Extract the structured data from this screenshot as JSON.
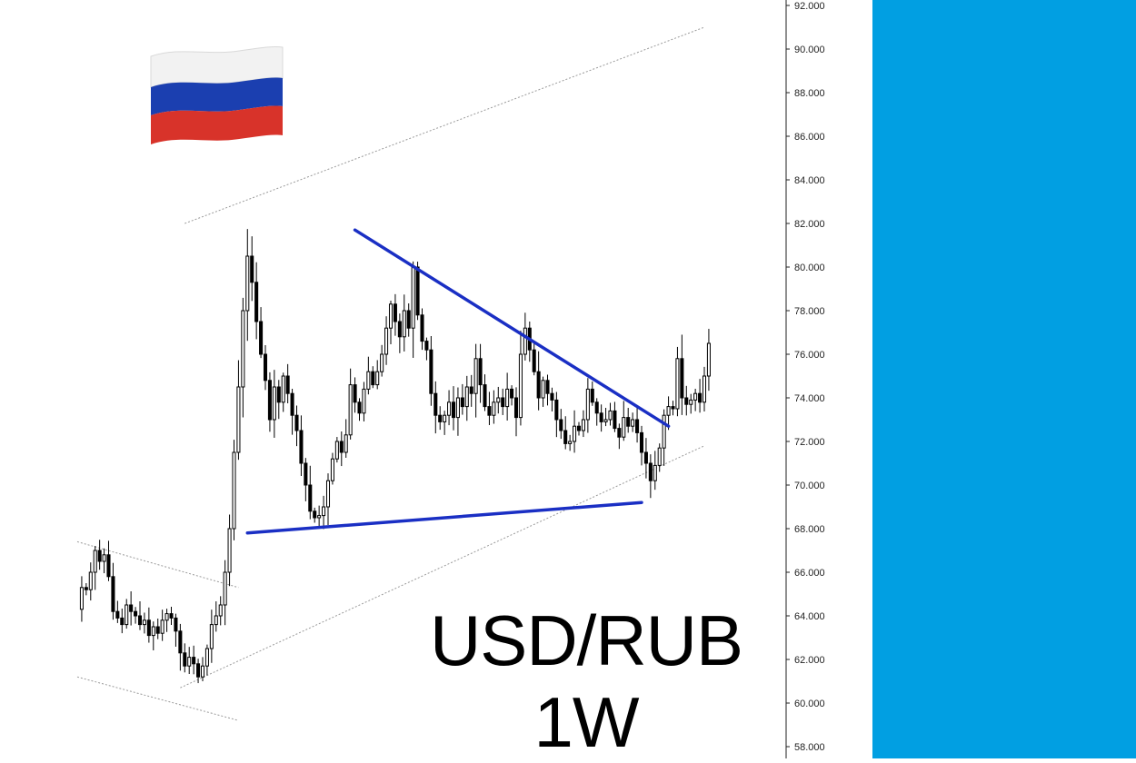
{
  "overlay": {
    "pair": "USD/RUB",
    "timeframe": "1W",
    "flag_icon": "russia-flag-icon"
  },
  "colors": {
    "background": "#ffffff",
    "candle_up": "#ffffff",
    "candle_down": "#000000",
    "wick": "#000000",
    "trendline": "#1a2fc4",
    "channel": "#9a9a9a",
    "side_panel": "#019fe2",
    "flag_white": "#f2f2f2",
    "flag_blue": "#1b3fb0",
    "flag_red": "#d8332a"
  },
  "chart_data": {
    "type": "candlestick",
    "title": "USD/RUB",
    "timeframe": "1W",
    "ylim": [
      58,
      92
    ],
    "y_ticks": [
      "92.000",
      "90.000",
      "88.000",
      "86.000",
      "84.000",
      "82.000",
      "80.000",
      "78.000",
      "76.000",
      "74.000",
      "72.000",
      "70.000",
      "68.000",
      "66.000",
      "64.000",
      "62.000",
      "60.000",
      "58.000"
    ],
    "x_index_range": [
      0,
      140
    ],
    "close": [
      64.3,
      65.3,
      65.2,
      66.0,
      67.0,
      66.5,
      66.8,
      65.8,
      64.2,
      63.9,
      63.6,
      64.5,
      64.2,
      64.0,
      63.6,
      63.8,
      63.1,
      63.5,
      63.2,
      63.8,
      64.1,
      63.9,
      63.3,
      62.3,
      61.7,
      62.1,
      61.8,
      61.2,
      61.7,
      62.5,
      63.6,
      64.0,
      64.5,
      66.0,
      68.0,
      71.5,
      74.5,
      78.0,
      80.5,
      79.3,
      77.5,
      76.0,
      74.8,
      73.0,
      74.5,
      73.8,
      75.0,
      74.2,
      73.2,
      72.5,
      71.0,
      70.0,
      68.8,
      68.5,
      68.6,
      69.0,
      70.2,
      71.2,
      72.0,
      71.5,
      72.3,
      74.6,
      73.8,
      73.3,
      74.4,
      75.2,
      74.6,
      75.2,
      76.0,
      77.2,
      78.3,
      77.5,
      76.8,
      78.0,
      77.2,
      80.0,
      77.8,
      76.6,
      76.2,
      74.2,
      73.2,
      72.9,
      73.2,
      73.8,
      73.1,
      74.0,
      73.6,
      74.5,
      74.2,
      75.8,
      74.6,
      73.6,
      73.2,
      73.8,
      74.0,
      73.6,
      74.4,
      74.0,
      73.1,
      76.0,
      77.2,
      76.2,
      75.2,
      74.0,
      74.8,
      74.2,
      73.9,
      73.0,
      72.5,
      71.9,
      72.0,
      72.7,
      72.5,
      73.0,
      74.4,
      73.8,
      73.3,
      72.9,
      73.0,
      73.4,
      72.6,
      72.2,
      73.1,
      72.7,
      73.0,
      72.4,
      71.5,
      71.0,
      70.2,
      70.9,
      71.7,
      73.2,
      73.6,
      73.5,
      75.8,
      74.0,
      73.7,
      73.9,
      74.2,
      73.8,
      75.0,
      76.5
    ],
    "trendlines": [
      {
        "label": "descending resistance",
        "from": [
          62,
          81.7
        ],
        "to": [
          132,
          72.7
        ]
      },
      {
        "label": "ascending support",
        "from": [
          38,
          67.8
        ],
        "to": [
          126,
          69.2
        ]
      }
    ],
    "channel_lines": [
      {
        "from": [
          24,
          82.0
        ],
        "to": [
          140,
          91.0
        ]
      },
      {
        "from": [
          23,
          60.7
        ],
        "to": [
          140,
          71.8
        ]
      },
      {
        "from": [
          0,
          67.4
        ],
        "to": [
          36,
          65.3
        ]
      },
      {
        "from": [
          0,
          61.2
        ],
        "to": [
          36,
          59.2
        ]
      }
    ]
  }
}
